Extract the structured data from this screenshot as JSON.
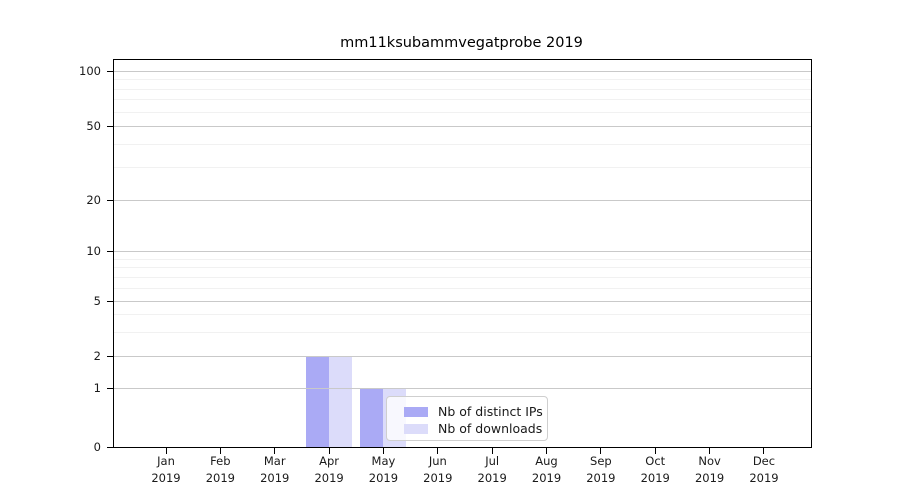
{
  "chart_data": {
    "type": "bar",
    "title": "mm11ksubammvegatprobe 2019",
    "categories": [
      "Jan",
      "Feb",
      "Mar",
      "Apr",
      "May",
      "Jun",
      "Jul",
      "Aug",
      "Sep",
      "Oct",
      "Nov",
      "Dec"
    ],
    "x_year": "2019",
    "series": [
      {
        "name": "Nb of distinct IPs",
        "color": "#aaaaf5",
        "values": [
          0,
          0,
          0,
          2,
          1,
          0,
          0,
          0,
          0,
          0,
          0,
          0
        ]
      },
      {
        "name": "Nb of downloads",
        "color": "#dcdcfa",
        "values": [
          0,
          0,
          0,
          2,
          1,
          0,
          0,
          0,
          0,
          0,
          0,
          0
        ]
      }
    ],
    "y_axis": {
      "scale": "symlog",
      "major_ticks": [
        0,
        1,
        2,
        5,
        10,
        20,
        50,
        100
      ],
      "minor_ticks": [
        3,
        4,
        6,
        7,
        8,
        9,
        30,
        40,
        60,
        70,
        80,
        90
      ],
      "ylim": [
        0,
        116
      ]
    },
    "grid": true,
    "legend_position": "inside lower-center",
    "colors": {
      "major_grid": "#c9c9c9",
      "minor_grid": "#f1f1f1",
      "spine": "#000000",
      "text": "#1a1a1a",
      "background": "#ffffff"
    }
  }
}
